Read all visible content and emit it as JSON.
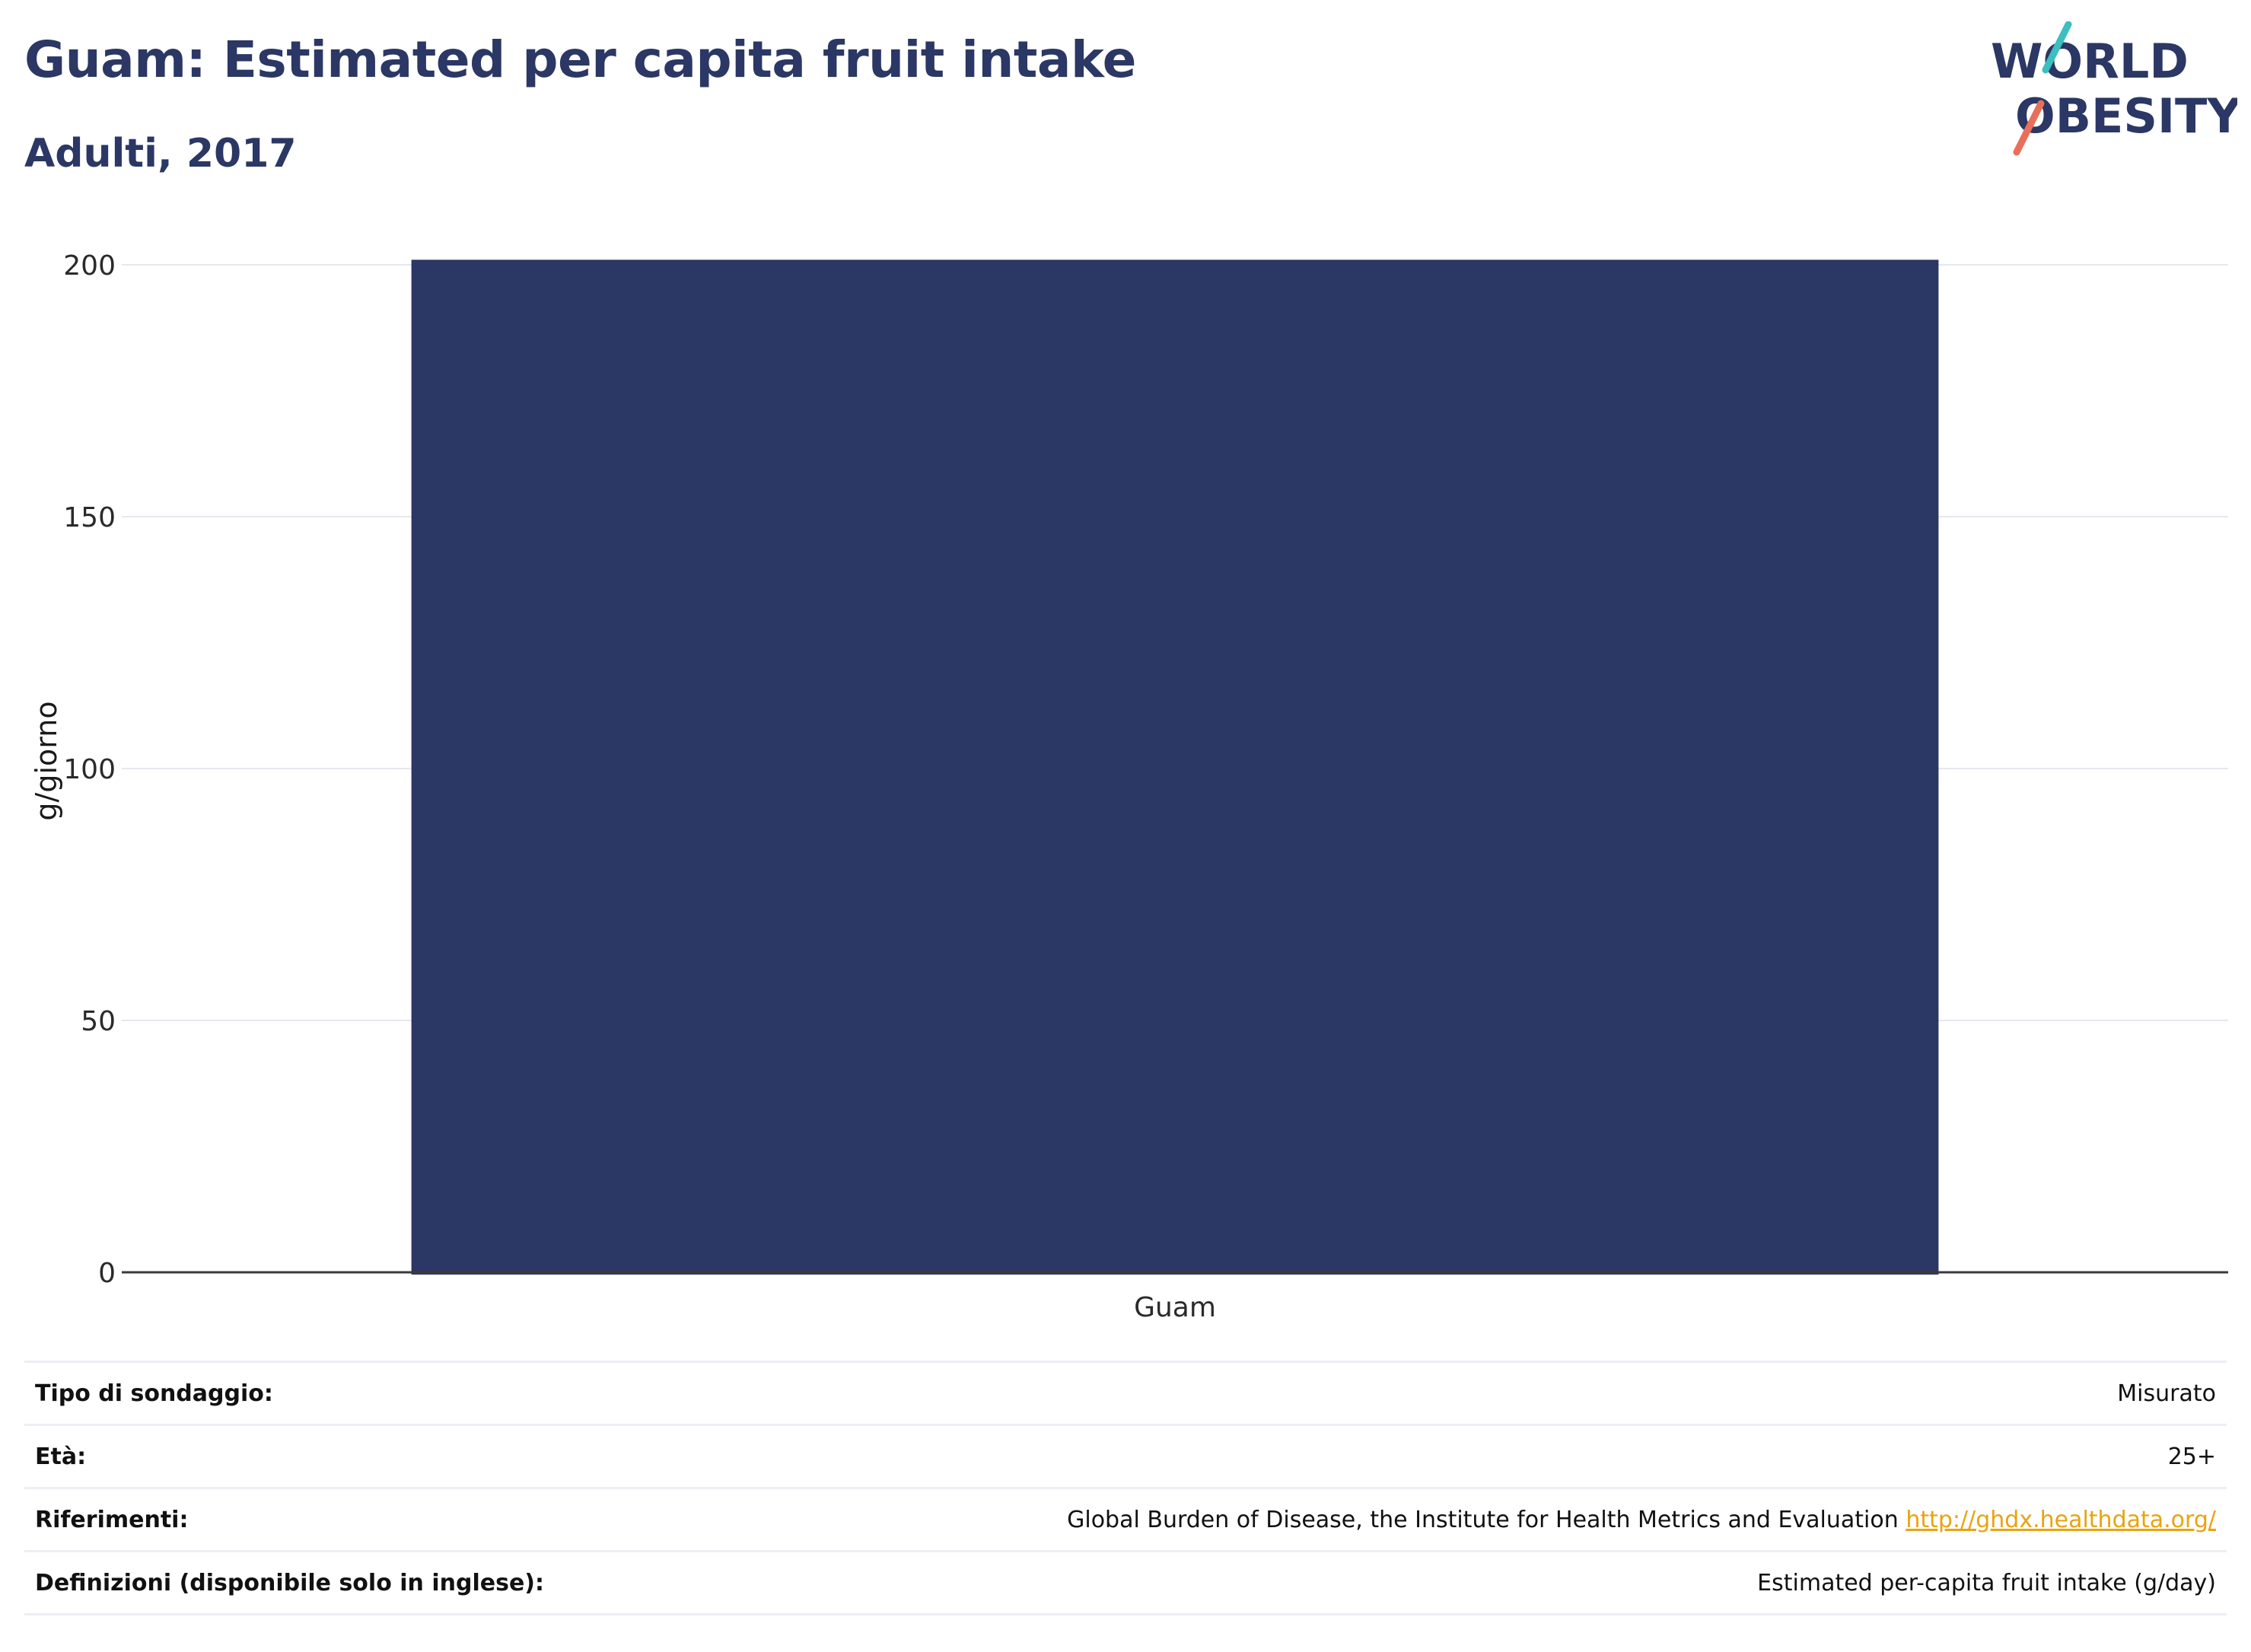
{
  "header": {
    "title": "Guam: Estimated per capita fruit intake",
    "subtitle": "Adulti, 2017"
  },
  "logo": {
    "line1": "WORLD",
    "line2": "OBESITY",
    "colors": {
      "text": "#2b3764",
      "teal_slash": "#3bbfbf",
      "coral_slash": "#e8705a"
    }
  },
  "chart_data": {
    "type": "bar",
    "categories": [
      "Guam"
    ],
    "values": [
      201
    ],
    "ylabel": "g/giorno",
    "xlabel": "",
    "ylim": [
      0,
      200
    ],
    "yticks": [
      0,
      50,
      100,
      150,
      200
    ],
    "grid": true,
    "bar_color": "#2b3764"
  },
  "info": {
    "rows": [
      {
        "label": "Tipo di sondaggio:",
        "value": "Misurato"
      },
      {
        "label": "Età:",
        "value": "25+"
      },
      {
        "label": "Riferimenti:",
        "value": "Global Burden of Disease, the Institute for Health Metrics and Evaluation",
        "link": "http://ghdx.healthdata.org/"
      },
      {
        "label": "Definizioni (disponibile solo in inglese):",
        "value": "Estimated per-capita fruit intake (g/day)"
      }
    ]
  }
}
